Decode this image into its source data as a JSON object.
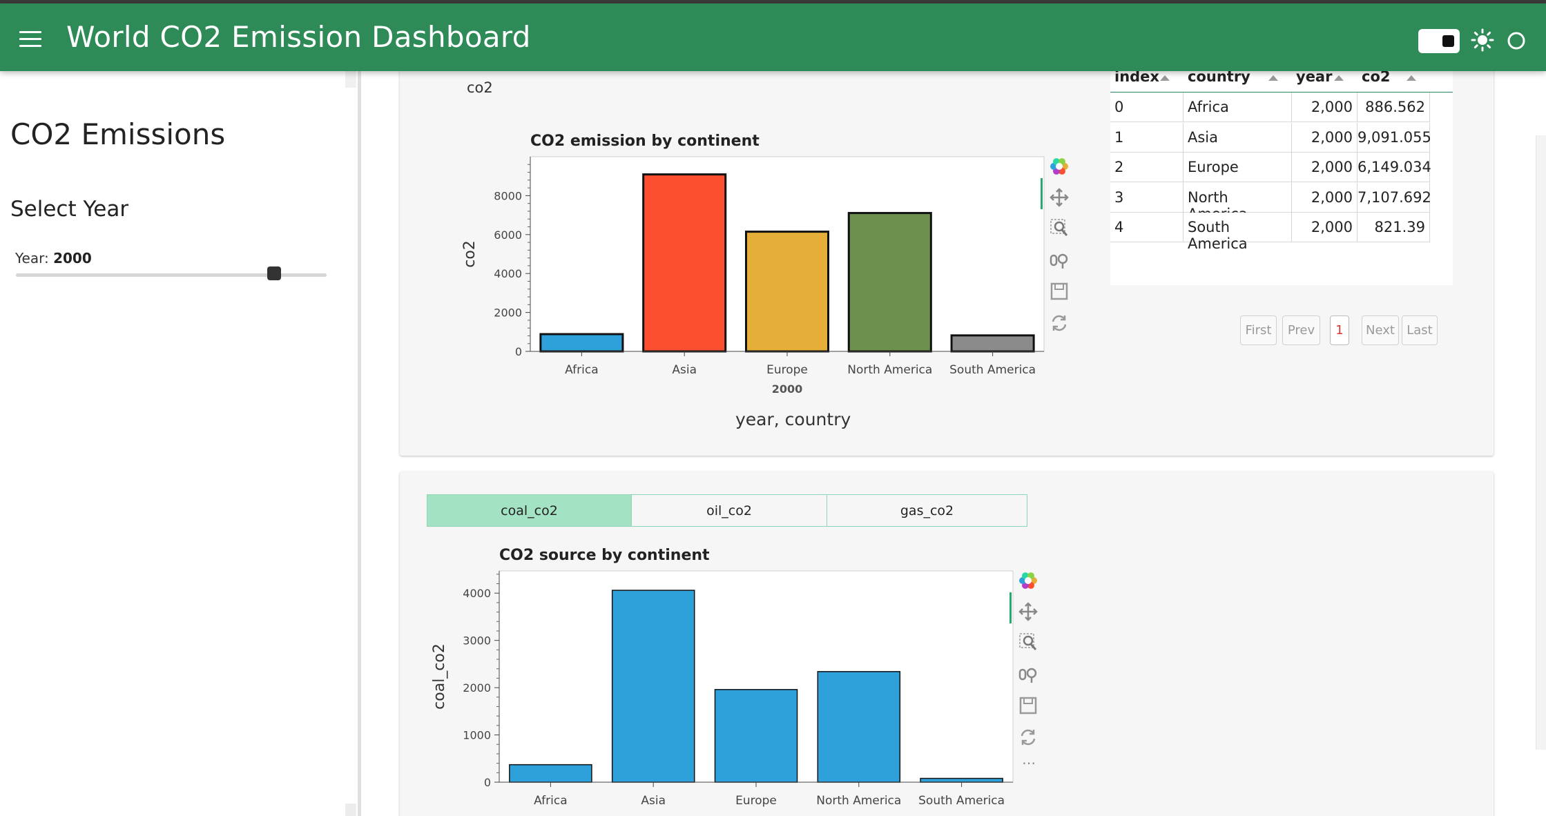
{
  "header": {
    "title": "World CO2 Emission Dashboard",
    "menu_icon": "hamburger-menu-icon",
    "theme_toggle_icon": "toggle-switch-icon",
    "light_icon": "sun-icon",
    "status_icon": "circle-icon",
    "color": "#2e8b57"
  },
  "sidebar": {
    "title": "CO2 Emissions",
    "subtitle": "Select Year",
    "slider_label": "Year:",
    "slider_value": "2000",
    "slider_fraction": 0.83
  },
  "card1": {
    "widget_caption": "co2",
    "xaxis_caption": "year, country"
  },
  "card2": {
    "tabs": [
      {
        "label": "coal_co2",
        "active": true
      },
      {
        "label": "oil_co2",
        "active": false
      },
      {
        "label": "gas_co2",
        "active": false
      }
    ]
  },
  "table": {
    "columns": [
      "index",
      "country",
      "year",
      "co2"
    ],
    "rows": [
      [
        "0",
        "Africa",
        "2,000",
        "886.562"
      ],
      [
        "1",
        "Asia",
        "2,000",
        "9,091.055"
      ],
      [
        "2",
        "Europe",
        "2,000",
        "6,149.034"
      ],
      [
        "3",
        "North America",
        "2,000",
        "7,107.692"
      ],
      [
        "4",
        "South America",
        "2,000",
        "821.39"
      ]
    ],
    "pagination": [
      "First",
      "Prev",
      "1",
      "Next",
      "Last"
    ],
    "current_page": "1"
  },
  "toolbar_icons": [
    "bokeh-logo-icon",
    "pan-icon",
    "box-zoom-icon",
    "wheel-zoom-icon",
    "save-icon",
    "reset-icon"
  ],
  "chart_data": [
    {
      "type": "bar",
      "title": "CO2 emission by continent",
      "group_label": "2000",
      "categories": [
        "Africa",
        "Asia",
        "Europe",
        "North America",
        "South America"
      ],
      "values": [
        886.562,
        9091.055,
        6149.034,
        7107.692,
        821.39
      ],
      "colors": [
        "#2fa1da",
        "#fc4f30",
        "#e5ae38",
        "#6d904f",
        "#8b8b8b"
      ],
      "xlabel": "year, country",
      "ylabel": "co2",
      "ylim": [
        0,
        10000
      ],
      "yticks": [
        0,
        2000,
        4000,
        6000,
        8000
      ],
      "ytick_labels": [
        "0",
        "2000",
        "4000",
        "6000",
        "8000"
      ]
    },
    {
      "type": "bar",
      "title": "CO2 source by continent",
      "categories": [
        "Africa",
        "Asia",
        "Europe",
        "North America",
        "South America"
      ],
      "values": [
        370,
        4060,
        1960,
        2340,
        80
      ],
      "colors": [
        "#2fa1da",
        "#2fa1da",
        "#2fa1da",
        "#2fa1da",
        "#2fa1da"
      ],
      "xlabel": "",
      "ylabel": "coal_co2",
      "ylim": [
        0,
        4470
      ],
      "yticks": [
        0,
        1000,
        2000,
        3000,
        4000
      ],
      "ytick_labels": [
        "0",
        "1000",
        "2000",
        "3000",
        "4000"
      ]
    }
  ]
}
